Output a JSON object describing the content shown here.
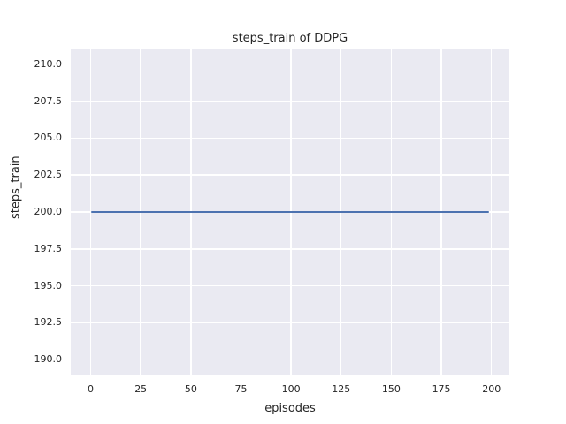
{
  "colors": {
    "figure_background": "#ffffff",
    "axes_background": "#eaeaf2",
    "grid": "#ffffff",
    "text": "#262626",
    "line": "#4c72b0"
  },
  "chart_data": {
    "type": "line",
    "title": "steps_train of DDPG",
    "xlabel": "episodes",
    "ylabel": "steps_train",
    "xlim": [
      -9.95,
      208.95
    ],
    "ylim": [
      189.0,
      211.0
    ],
    "grid": true,
    "legend_position": "none",
    "xticks": [
      {
        "value": 0,
        "label": "0"
      },
      {
        "value": 25,
        "label": "25"
      },
      {
        "value": 50,
        "label": "50"
      },
      {
        "value": 75,
        "label": "75"
      },
      {
        "value": 100,
        "label": "100"
      },
      {
        "value": 125,
        "label": "125"
      },
      {
        "value": 150,
        "label": "150"
      },
      {
        "value": 175,
        "label": "175"
      },
      {
        "value": 200,
        "label": "200"
      }
    ],
    "yticks": [
      {
        "value": 190.0,
        "label": "190.0"
      },
      {
        "value": 192.5,
        "label": "192.5"
      },
      {
        "value": 195.0,
        "label": "195.0"
      },
      {
        "value": 197.5,
        "label": "197.5"
      },
      {
        "value": 200.0,
        "label": "200.0"
      },
      {
        "value": 202.5,
        "label": "202.5"
      },
      {
        "value": 205.0,
        "label": "205.0"
      },
      {
        "value": 207.5,
        "label": "207.5"
      },
      {
        "value": 210.0,
        "label": "210.0"
      }
    ],
    "series": [
      {
        "name": "steps_train",
        "color": "#4c72b0",
        "description": "constant value 200 for every episode from 0 to 199",
        "x": [
          0,
          199
        ],
        "y": [
          200,
          200
        ]
      }
    ]
  }
}
